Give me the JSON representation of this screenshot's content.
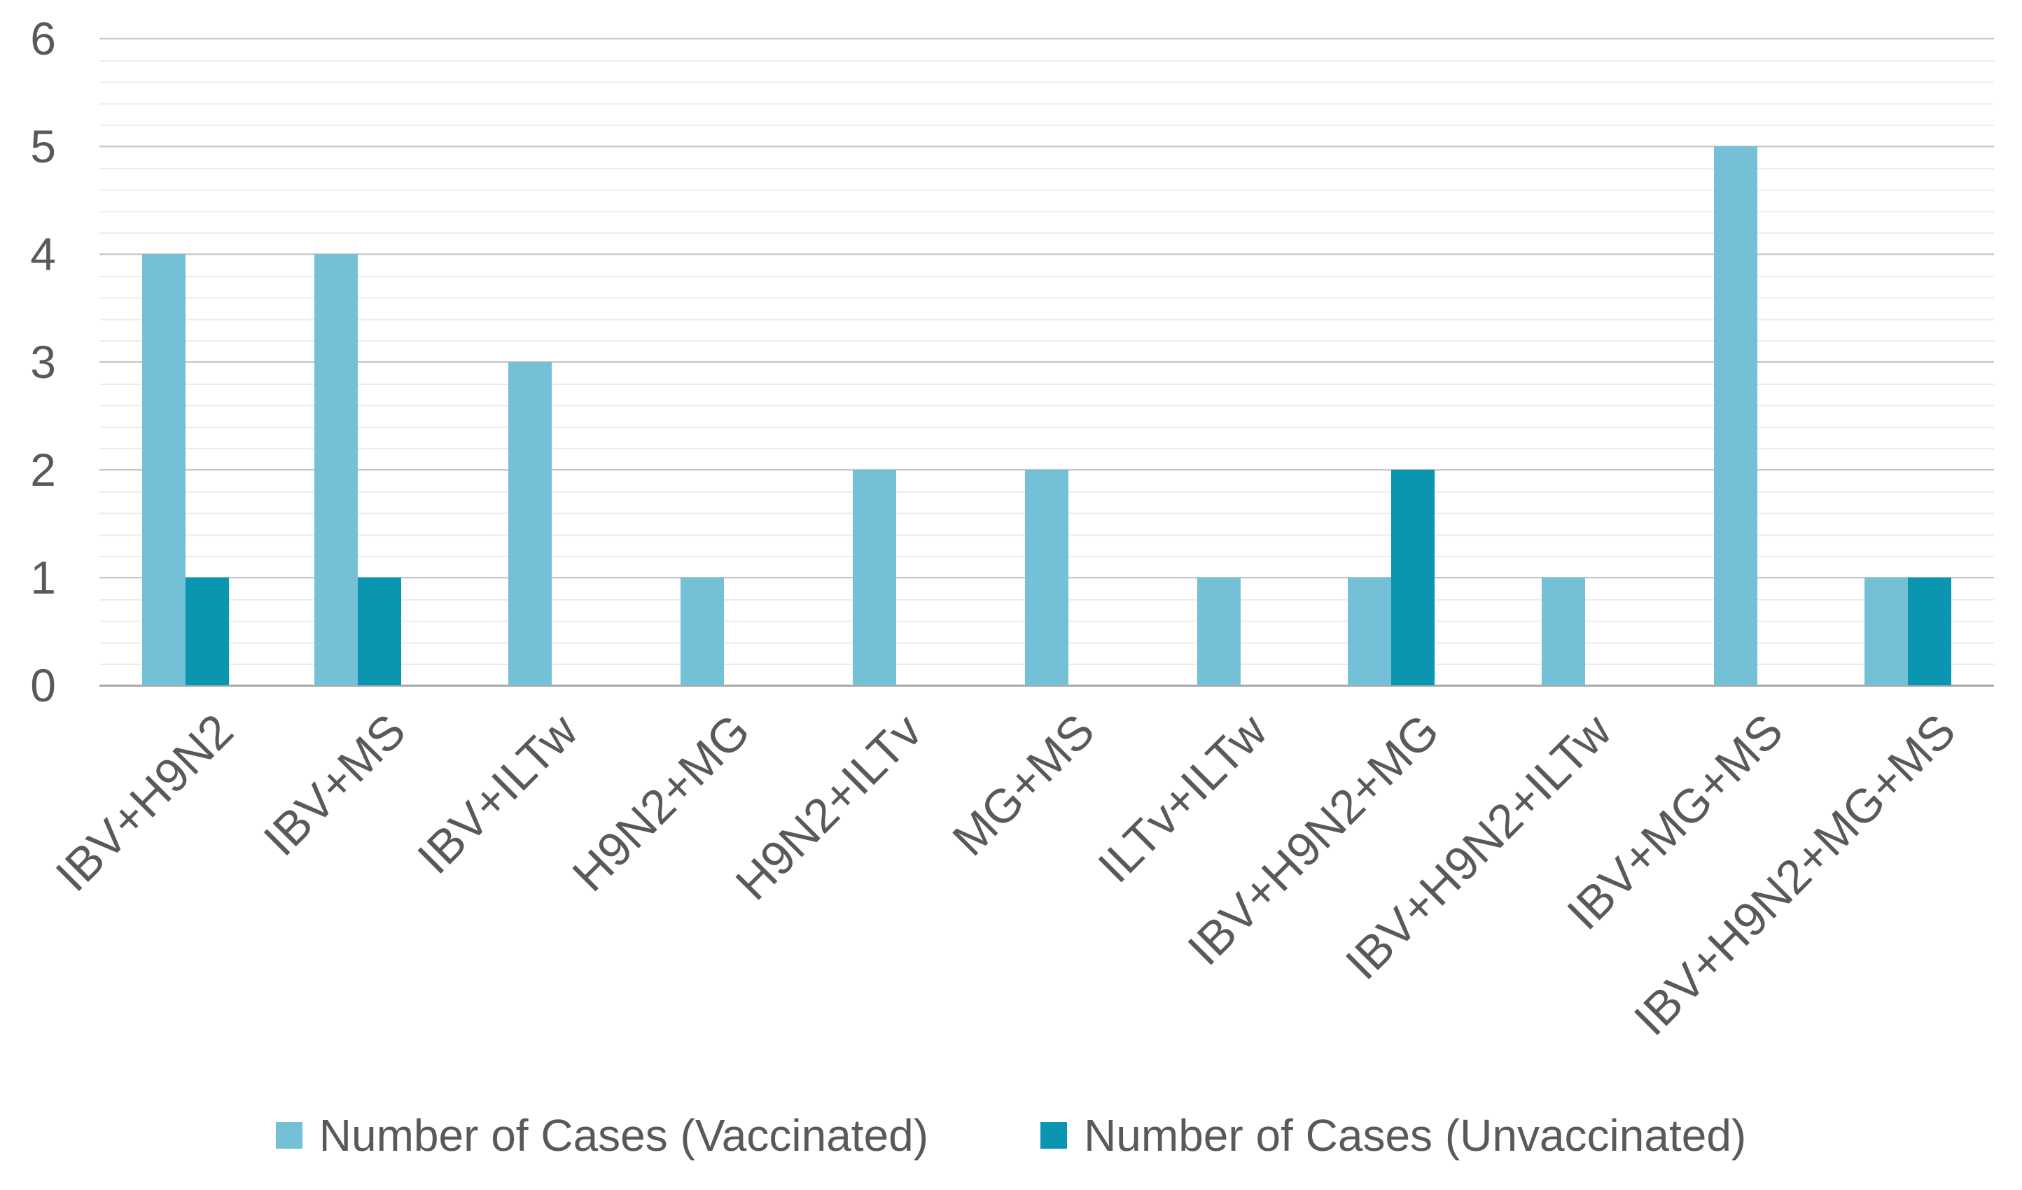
{
  "chart_data": {
    "type": "bar",
    "categories": [
      "IBV+H9N2",
      "IBV+MS",
      "IBV+ILTw",
      "H9N2+MG",
      "H9N2+ILTv",
      "MG+MS",
      "ILTv+ILTw",
      "IBV+H9N2+MG",
      "IBV+H9N2+ILTw",
      "IBV+MG+MS",
      "IBV+H9N2+MG+MS"
    ],
    "series": [
      {
        "name": "Number of Cases (Vaccinated)",
        "color": "#74C1D7",
        "values": [
          4,
          4,
          3,
          1,
          2,
          2,
          1,
          1,
          1,
          5,
          1
        ]
      },
      {
        "name": "Number of Cases (Unvaccinated)",
        "color": "#0A95B0",
        "values": [
          1,
          1,
          0,
          0,
          0,
          0,
          0,
          2,
          0,
          0,
          1
        ]
      }
    ],
    "title": "",
    "xlabel": "",
    "ylabel": "",
    "ylim": [
      0,
      6
    ],
    "yticks": [
      0,
      1,
      2,
      3,
      4,
      5,
      6
    ],
    "grid": {
      "major": "on",
      "minor": "on",
      "minor_step": 0.2
    },
    "legend_position": "bottom"
  },
  "colors": {
    "vaccinated_bar": "#74C1D7",
    "unvaccinated_bar": "#0A95B0",
    "axis_text": "#595959",
    "major_gridline": "#c8c8c8",
    "minor_gridline": "#ececec",
    "axis_line": "#a9a9a9",
    "background": "#ffffff"
  }
}
